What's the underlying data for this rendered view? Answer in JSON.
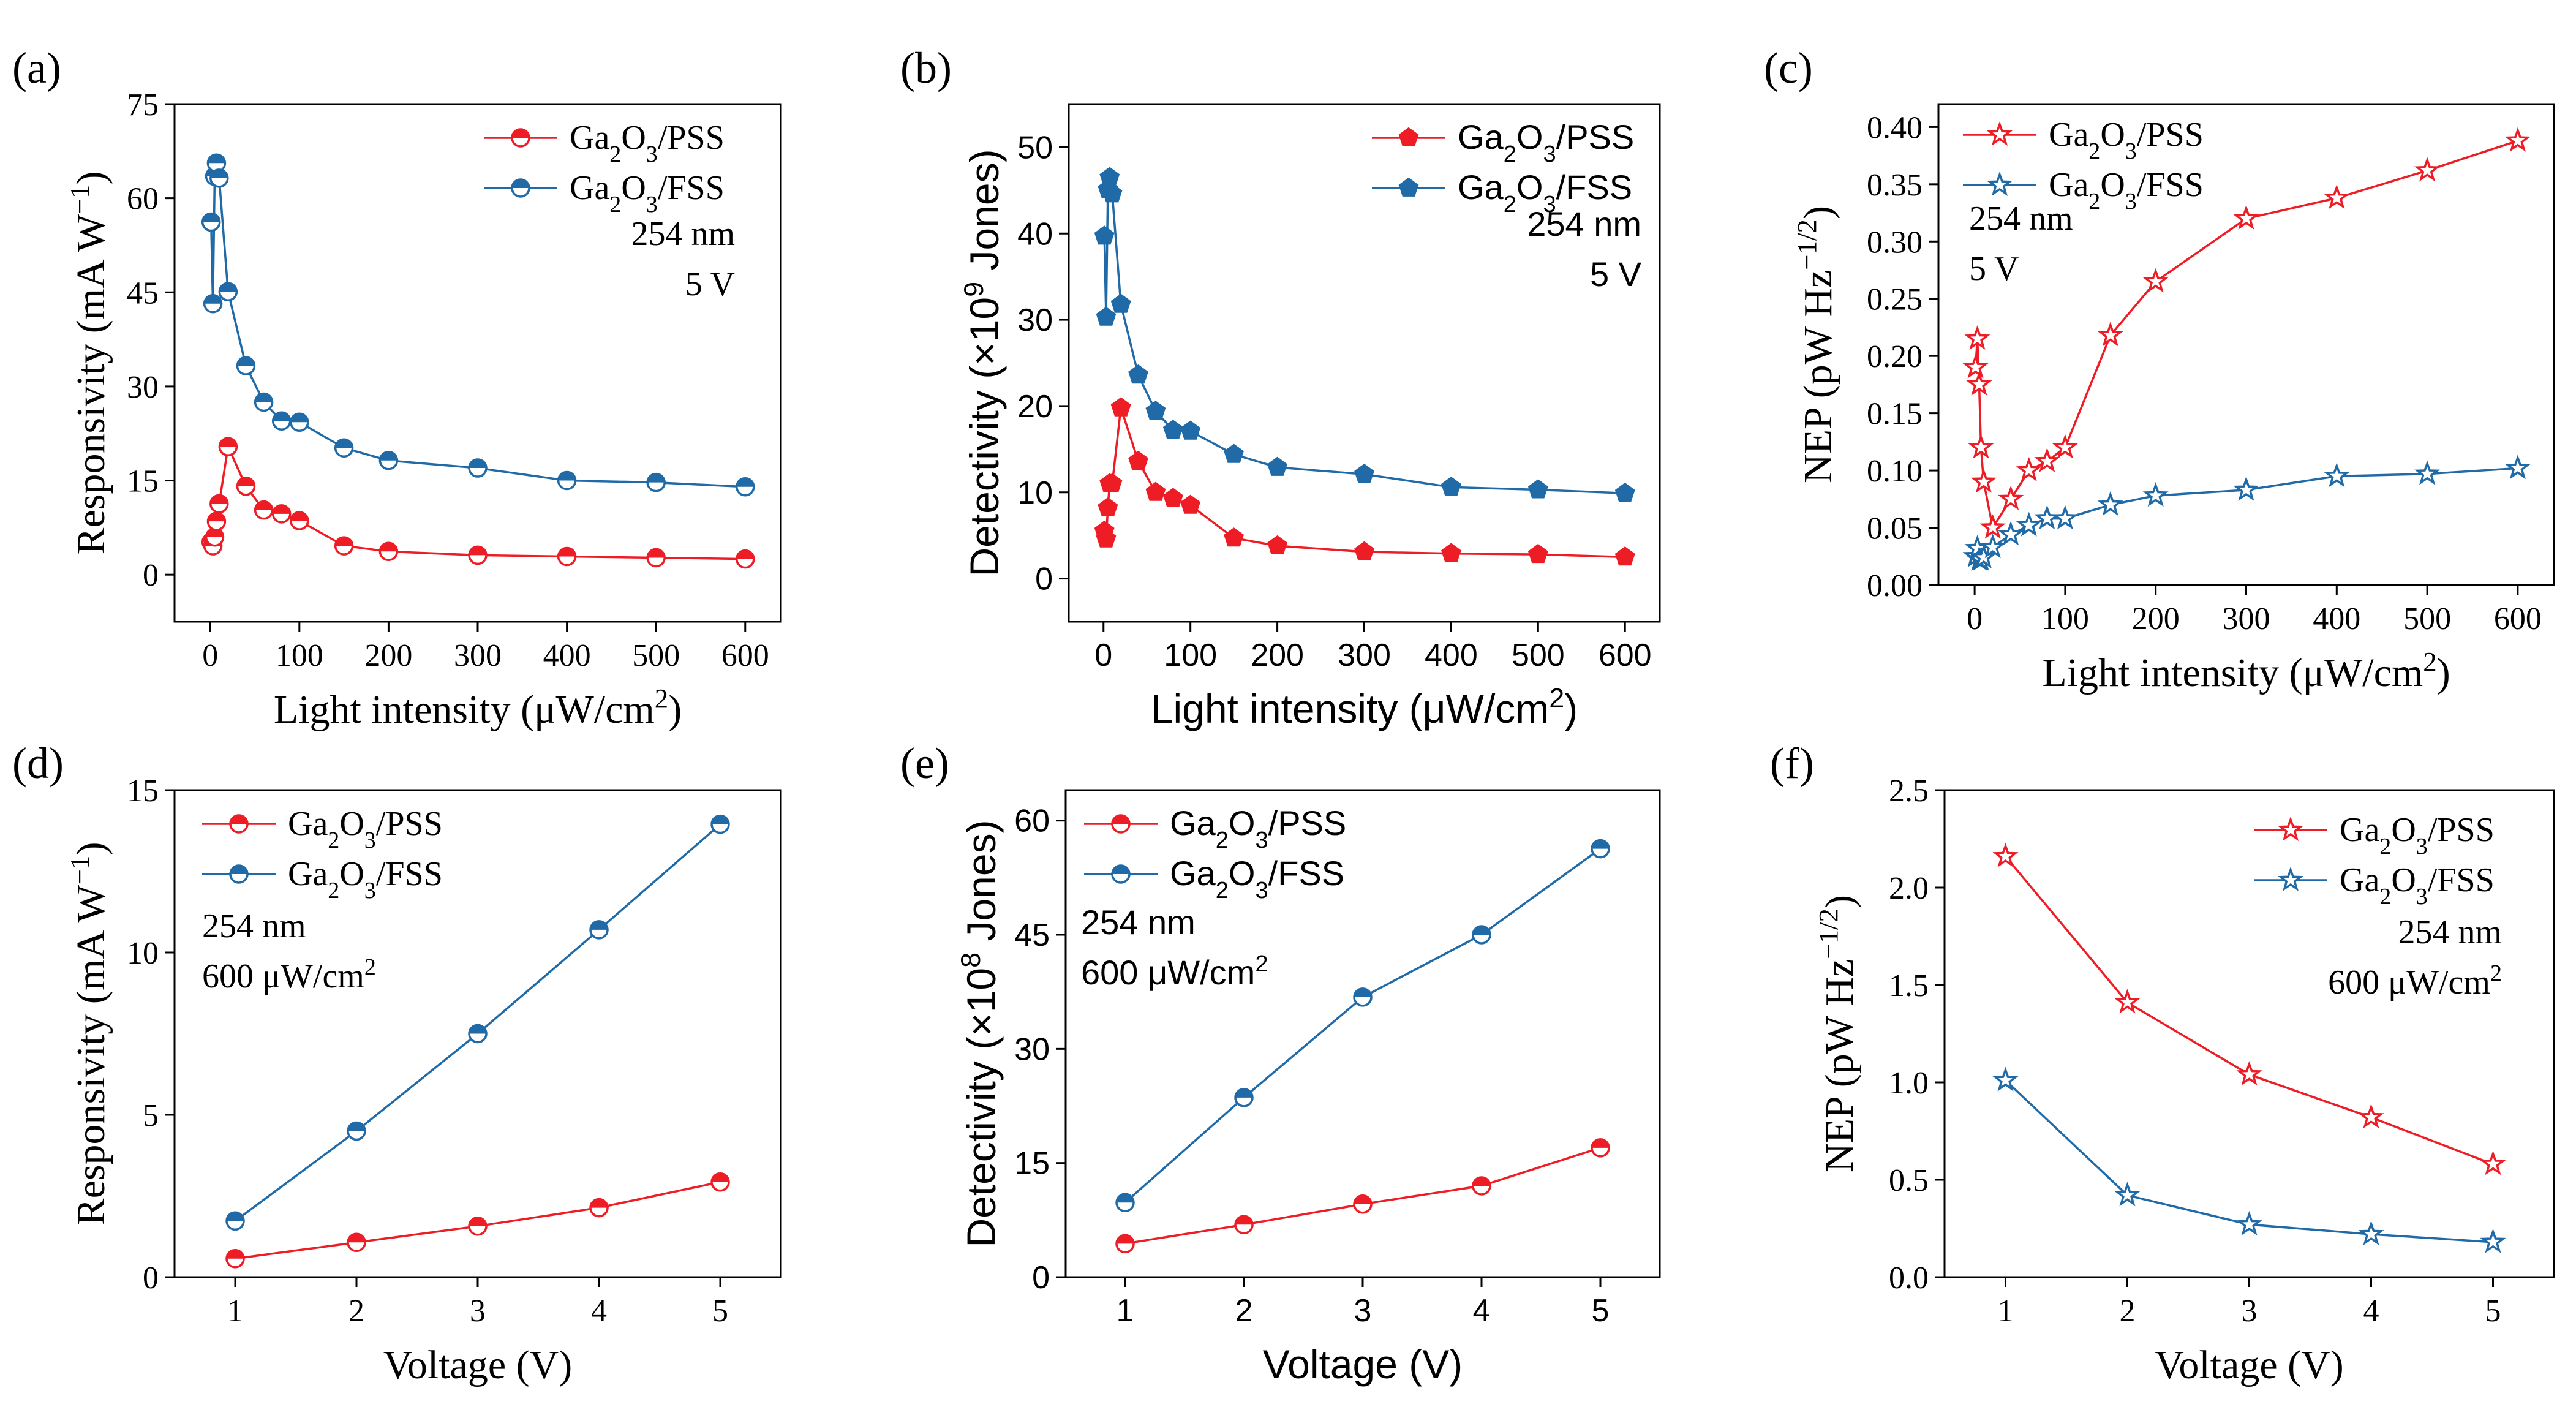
{
  "colors": {
    "red": "#ee1c25",
    "blue": "#1f6aa7",
    "axis": "#000000"
  },
  "chart_data": [
    {
      "id": "a",
      "panel_label": "(a)",
      "type": "line",
      "font": "serif",
      "marker": "circle",
      "xlabel": "Light intensity (μW/cm²)",
      "ylabel": "Responsivity (mA W⁻¹)",
      "xlim": [
        -40,
        640
      ],
      "ylim": [
        -7.5,
        75
      ],
      "xticks": [
        0,
        100,
        200,
        300,
        400,
        500,
        600
      ],
      "yticks": [
        0,
        15,
        30,
        45,
        60,
        75
      ],
      "legend_position": "top-right",
      "annotations": [
        "254 nm",
        "5 V"
      ],
      "series": [
        {
          "name": "Ga₂O₃/PSS",
          "color": "red",
          "x": [
            1,
            3,
            5,
            7,
            10,
            20,
            40,
            60,
            80,
            100,
            150,
            200,
            300,
            400,
            500,
            600
          ],
          "y": [
            5.2,
            4.6,
            6.0,
            8.5,
            11.3,
            20.4,
            14.1,
            10.3,
            9.7,
            8.6,
            4.6,
            3.7,
            3.1,
            2.9,
            2.7,
            2.5
          ]
        },
        {
          "name": "Ga₂O₃/FSS",
          "color": "blue",
          "x": [
            1,
            3,
            5,
            7,
            10,
            20,
            40,
            60,
            80,
            100,
            150,
            200,
            300,
            400,
            500,
            600
          ],
          "y": [
            56.2,
            43.2,
            63.5,
            65.6,
            63.2,
            45.1,
            33.3,
            27.5,
            24.5,
            24.3,
            20.2,
            18.2,
            17.0,
            15.0,
            14.7,
            14.0
          ]
        }
      ]
    },
    {
      "id": "b",
      "panel_label": "(b)",
      "type": "line",
      "font": "sans",
      "marker": "pentagon",
      "xlabel": "Light intensity (μW/cm²)",
      "ylabel": "Detectivity (×10⁹ Jones)",
      "xlim": [
        -40,
        640
      ],
      "ylim": [
        -5,
        55
      ],
      "xticks": [
        0,
        100,
        200,
        300,
        400,
        500,
        600
      ],
      "yticks": [
        0,
        10,
        20,
        30,
        40,
        50
      ],
      "legend_position": "top-right",
      "annotations": [
        "254 nm",
        "5 V"
      ],
      "series": [
        {
          "name": "Ga₂O₃/PSS",
          "color": "red",
          "x": [
            1,
            3,
            5,
            7,
            10,
            20,
            40,
            60,
            80,
            100,
            150,
            200,
            300,
            400,
            500,
            600
          ],
          "y": [
            5.5,
            4.6,
            8.2,
            11.0,
            11.0,
            19.8,
            13.6,
            10.0,
            9.3,
            8.5,
            4.7,
            3.8,
            3.1,
            2.9,
            2.8,
            2.5
          ]
        },
        {
          "name": "Ga₂O₃/FSS",
          "color": "blue",
          "x": [
            1,
            3,
            5,
            7,
            10,
            20,
            40,
            60,
            80,
            100,
            150,
            200,
            300,
            400,
            500,
            600
          ],
          "y": [
            39.7,
            30.3,
            45.1,
            46.5,
            44.6,
            31.8,
            23.6,
            19.4,
            17.2,
            17.1,
            14.4,
            12.9,
            12.1,
            10.6,
            10.3,
            9.9
          ]
        }
      ]
    },
    {
      "id": "c",
      "panel_label": "(c)",
      "type": "line",
      "font": "serif",
      "marker": "star",
      "xlabel": "Light intensity (μW/cm²)",
      "ylabel": "NEP (pW Hz⁻¹ᐟ²)",
      "xlim": [
        -40,
        640
      ],
      "ylim": [
        0,
        0.42
      ],
      "xticks": [
        0,
        100,
        200,
        300,
        400,
        500,
        600
      ],
      "yticks": [
        0.0,
        0.05,
        0.1,
        0.15,
        0.2,
        0.25,
        0.3,
        0.35,
        0.4
      ],
      "legend_position": "top-left",
      "annotations": [
        "254 nm",
        "5 V"
      ],
      "series": [
        {
          "name": "Ga₂O₃/PSS",
          "color": "red",
          "x": [
            1,
            3,
            5,
            7,
            10,
            20,
            40,
            60,
            80,
            100,
            150,
            200,
            300,
            400,
            500,
            600
          ],
          "y": [
            0.19,
            0.215,
            0.175,
            0.12,
            0.09,
            0.05,
            0.075,
            0.1,
            0.108,
            0.12,
            0.218,
            0.265,
            0.32,
            0.338,
            0.362,
            0.388
          ]
        },
        {
          "name": "Ga₂O₃/FSS",
          "color": "blue",
          "x": [
            1,
            3,
            5,
            7,
            10,
            20,
            40,
            60,
            80,
            100,
            150,
            200,
            300,
            400,
            500,
            600
          ],
          "y": [
            0.025,
            0.032,
            0.022,
            0.022,
            0.024,
            0.033,
            0.044,
            0.052,
            0.058,
            0.058,
            0.07,
            0.078,
            0.083,
            0.095,
            0.097,
            0.102
          ]
        }
      ]
    },
    {
      "id": "d",
      "panel_label": "(d)",
      "type": "line",
      "font": "serif",
      "marker": "circle",
      "xlabel": "Voltage (V)",
      "ylabel": "Responsivity (mA W⁻¹)",
      "xlim": [
        0.5,
        5.5
      ],
      "ylim": [
        0,
        15
      ],
      "xticks": [
        1,
        2,
        3,
        4,
        5
      ],
      "yticks": [
        0,
        5,
        10,
        15
      ],
      "legend_position": "top-left",
      "annotations": [
        "254 nm",
        "600 μW/cm²"
      ],
      "series": [
        {
          "name": "Ga₂O₃/PSS",
          "color": "red",
          "x": [
            1,
            2,
            3,
            4,
            5
          ],
          "y": [
            0.57,
            1.07,
            1.57,
            2.14,
            2.93
          ]
        },
        {
          "name": "Ga₂O₃/FSS",
          "color": "blue",
          "x": [
            1,
            2,
            3,
            4,
            5
          ],
          "y": [
            1.73,
            4.5,
            7.5,
            10.7,
            13.95
          ]
        }
      ]
    },
    {
      "id": "e",
      "panel_label": "(e)",
      "type": "line",
      "font": "sans",
      "marker": "circle",
      "xlabel": "Voltage (V)",
      "ylabel": "Detectivity (×10⁸ Jones)",
      "xlim": [
        0.5,
        5.5
      ],
      "ylim": [
        0,
        64
      ],
      "xticks": [
        1,
        2,
        3,
        4,
        5
      ],
      "yticks": [
        0,
        15,
        30,
        45,
        60
      ],
      "legend_position": "top-left",
      "annotations": [
        "254 nm",
        "600 μW/cm²"
      ],
      "series": [
        {
          "name": "Ga₂O₃/PSS",
          "color": "red",
          "x": [
            1,
            2,
            3,
            4,
            5
          ],
          "y": [
            4.4,
            6.9,
            9.6,
            12.0,
            17.0
          ]
        },
        {
          "name": "Ga₂O₃/FSS",
          "color": "blue",
          "x": [
            1,
            2,
            3,
            4,
            5
          ],
          "y": [
            9.8,
            23.6,
            36.8,
            45.0,
            56.3
          ]
        }
      ]
    },
    {
      "id": "f",
      "panel_label": "(f)",
      "type": "line",
      "font": "serif",
      "marker": "star",
      "xlabel": "Voltage (V)",
      "ylabel": "NEP (pW Hz⁻¹ᐟ²)",
      "xlim": [
        0.5,
        5.5
      ],
      "ylim": [
        0,
        2.5
      ],
      "xticks": [
        1,
        2,
        3,
        4,
        5
      ],
      "yticks": [
        0.0,
        0.5,
        1.0,
        1.5,
        2.0,
        2.5
      ],
      "legend_position": "top-right",
      "annotations": [
        "254 nm",
        "600 μW/cm²"
      ],
      "series": [
        {
          "name": "Ga₂O₃/PSS",
          "color": "red",
          "x": [
            1,
            2,
            3,
            4,
            5
          ],
          "y": [
            2.16,
            1.41,
            1.04,
            0.82,
            0.58
          ]
        },
        {
          "name": "Ga₂O₃/FSS",
          "color": "blue",
          "x": [
            1,
            2,
            3,
            4,
            5
          ],
          "y": [
            1.01,
            0.42,
            0.27,
            0.22,
            0.18
          ]
        }
      ]
    }
  ]
}
